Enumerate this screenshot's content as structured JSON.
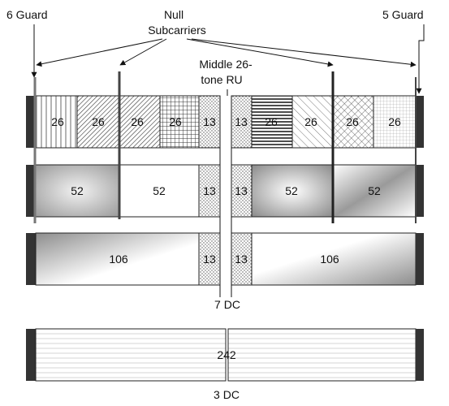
{
  "labels": {
    "guard_left": "6 Guard",
    "guard_right": "5 Guard",
    "null_line1": "Null",
    "null_line2": "Subcarriers",
    "middle_line1": "Middle 26-",
    "middle_line2": "tone RU",
    "dc7": "7 DC",
    "dc3": "3 DC"
  },
  "rows": {
    "row26": [
      "26",
      "26",
      "26",
      "26",
      "13",
      "13",
      "26",
      "26",
      "26",
      "26"
    ],
    "row52": [
      "52",
      "52",
      "13",
      "13",
      "52",
      "52"
    ],
    "row106": [
      "106",
      "13",
      "13",
      "106"
    ],
    "row242": [
      "242"
    ]
  }
}
